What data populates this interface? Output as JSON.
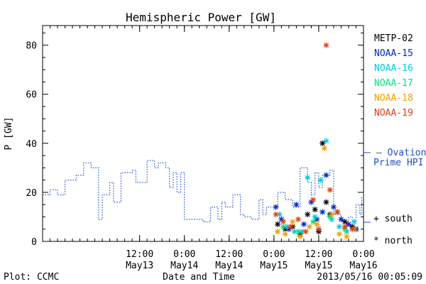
{
  "chart_data": {
    "type": "scatter",
    "title": "Hemispheric Power [GW]",
    "xlabel": "Date and Time",
    "ylabel": "P [GW]",
    "x_range": [
      "2013-05-12T10:00",
      "2013-05-16T00:00"
    ],
    "ylim": [
      0,
      88
    ],
    "y_ticks": [
      0,
      20,
      40,
      60,
      80
    ],
    "x_ticks": [
      {
        "x": "2013-05-13T12:00",
        "line1": "12:00",
        "line2": "May13"
      },
      {
        "x": "2013-05-14T00:00",
        "line1": "0:00",
        "line2": "May14"
      },
      {
        "x": "2013-05-14T12:00",
        "line1": "12:00",
        "line2": "May14"
      },
      {
        "x": "2013-05-15T00:00",
        "line1": "0:00",
        "line2": "May15"
      },
      {
        "x": "2013-05-15T12:00",
        "line1": "12:00",
        "line2": "May15"
      },
      {
        "x": "2013-05-16T00:00",
        "line1": "0:00",
        "line2": "May16"
      }
    ],
    "legend": {
      "placement": "right",
      "entries": [
        {
          "name": "METP-02",
          "color": "#000000"
        },
        {
          "name": "NOAA-15",
          "color": "#0028c8"
        },
        {
          "name": "NOAA-16",
          "color": "#00c8e6"
        },
        {
          "name": "NOAA-17",
          "color": "#00e678"
        },
        {
          "name": "NOAA-18",
          "color": "#f0a000"
        },
        {
          "name": "NOAA-19",
          "color": "#e63c14"
        }
      ],
      "model_line1": "— Ovation",
      "model_line2": "Prime HPI",
      "model_color": "#1e50c8",
      "marker_south": "+ south",
      "marker_north": "* north"
    },
    "series": [
      {
        "name": "Ovation Prime HPI",
        "style": "dotted-step",
        "color": "#1e50c8",
        "points": [
          [
            "2013-05-12T10:00",
            19
          ],
          [
            "2013-05-12T12:00",
            21
          ],
          [
            "2013-05-12T14:00",
            19
          ],
          [
            "2013-05-12T16:00",
            25
          ],
          [
            "2013-05-12T19:00",
            27
          ],
          [
            "2013-05-12T21:00",
            32
          ],
          [
            "2013-05-12T23:00",
            30
          ],
          [
            "2013-05-13T01:00",
            9
          ],
          [
            "2013-05-13T02:00",
            19
          ],
          [
            "2013-05-13T04:00",
            24
          ],
          [
            "2013-05-13T05:00",
            16
          ],
          [
            "2013-05-13T07:00",
            28
          ],
          [
            "2013-05-13T10:00",
            29
          ],
          [
            "2013-05-13T11:00",
            24
          ],
          [
            "2013-05-13T12:00",
            24
          ],
          [
            "2013-05-13T14:00",
            33
          ],
          [
            "2013-05-13T16:00",
            30
          ],
          [
            "2013-05-13T17:00",
            32
          ],
          [
            "2013-05-13T19:00",
            30
          ],
          [
            "2013-05-13T20:00",
            22
          ],
          [
            "2013-05-13T21:00",
            28
          ],
          [
            "2013-05-13T22:00",
            20
          ],
          [
            "2013-05-13T23:00",
            28
          ],
          [
            "2013-05-14T00:00",
            9
          ],
          [
            "2013-05-14T02:00",
            9
          ],
          [
            "2013-05-14T05:00",
            8
          ],
          [
            "2013-05-14T07:00",
            14
          ],
          [
            "2013-05-14T09:00",
            9
          ],
          [
            "2013-05-14T10:00",
            16
          ],
          [
            "2013-05-14T11:00",
            14
          ],
          [
            "2013-05-14T13:00",
            19
          ],
          [
            "2013-05-14T15:00",
            11
          ],
          [
            "2013-05-14T16:00",
            10
          ],
          [
            "2013-05-14T18:00",
            9
          ],
          [
            "2013-05-14T20:00",
            17
          ],
          [
            "2013-05-14T21:00",
            11
          ],
          [
            "2013-05-14T22:00",
            14
          ],
          [
            "2013-05-15T01:00",
            20
          ],
          [
            "2013-05-15T03:00",
            17
          ],
          [
            "2013-05-15T05:00",
            14
          ],
          [
            "2013-05-15T07:00",
            30
          ],
          [
            "2013-05-15T09:00",
            24
          ],
          [
            "2013-05-15T10:00",
            19
          ],
          [
            "2013-05-15T11:00",
            28
          ],
          [
            "2013-05-15T12:00",
            22
          ],
          [
            "2013-05-15T13:00",
            27
          ],
          [
            "2013-05-15T15:00",
            29
          ],
          [
            "2013-05-15T16:00",
            11
          ],
          [
            "2013-05-15T18:00",
            9
          ],
          [
            "2013-05-15T19:00",
            8
          ],
          [
            "2013-05-15T20:00",
            10
          ],
          [
            "2013-05-15T21:00",
            8
          ],
          [
            "2013-05-15T22:00",
            15
          ],
          [
            "2013-05-15T23:00",
            11
          ],
          [
            "2013-05-15T23:30",
            18
          ],
          [
            "2013-05-16T00:00",
            20
          ]
        ]
      },
      {
        "name": "METP-02",
        "color": "#000000",
        "points": [
          [
            "2013-05-15T01:00",
            7
          ],
          [
            "2013-05-15T03:00",
            5
          ],
          [
            "2013-05-15T05:00",
            6
          ],
          [
            "2013-05-15T07:00",
            3
          ],
          [
            "2013-05-15T09:00",
            11
          ],
          [
            "2013-05-15T11:00",
            13
          ],
          [
            "2013-05-15T12:00",
            4
          ],
          [
            "2013-05-15T13:00",
            40
          ],
          [
            "2013-05-15T14:00",
            16
          ],
          [
            "2013-05-15T15:00",
            11
          ],
          [
            "2013-05-15T17:00",
            12
          ],
          [
            "2013-05-15T19:00",
            8
          ],
          [
            "2013-05-15T21:00",
            6
          ],
          [
            "2013-05-15T22:00",
            5
          ]
        ]
      },
      {
        "name": "NOAA-15",
        "color": "#0028c8",
        "points": [
          [
            "2013-05-15T00:30",
            14
          ],
          [
            "2013-05-15T02:00",
            9
          ],
          [
            "2013-05-15T04:00",
            5
          ],
          [
            "2013-05-15T06:00",
            15
          ],
          [
            "2013-05-15T08:00",
            7
          ],
          [
            "2013-05-15T10:00",
            16
          ],
          [
            "2013-05-15T11:30",
            9
          ],
          [
            "2013-05-15T13:00",
            12
          ],
          [
            "2013-05-15T14:00",
            27
          ],
          [
            "2013-05-15T16:00",
            14
          ],
          [
            "2013-05-15T18:00",
            9
          ],
          [
            "2013-05-15T20:00",
            7
          ],
          [
            "2013-05-15T22:00",
            5
          ]
        ]
      },
      {
        "name": "NOAA-16",
        "color": "#00c8e6",
        "points": [
          [
            "2013-05-15T01:30",
            11
          ],
          [
            "2013-05-15T03:30",
            6
          ],
          [
            "2013-05-15T05:30",
            4
          ],
          [
            "2013-05-15T07:30",
            4
          ],
          [
            "2013-05-15T09:00",
            26
          ],
          [
            "2013-05-15T11:00",
            10
          ],
          [
            "2013-05-15T12:30",
            25
          ],
          [
            "2013-05-15T14:00",
            41
          ],
          [
            "2013-05-15T15:30",
            9
          ],
          [
            "2013-05-15T17:30",
            6
          ],
          [
            "2013-05-15T19:30",
            4
          ],
          [
            "2013-05-15T21:30",
            8
          ]
        ]
      },
      {
        "name": "NOAA-17",
        "color": "#00e678",
        "points": [
          [
            "2013-05-15T02:30",
            6
          ],
          [
            "2013-05-15T06:30",
            4
          ],
          [
            "2013-05-15T10:30",
            8
          ],
          [
            "2013-05-15T15:00",
            10
          ],
          [
            "2013-05-15T19:00",
            5
          ]
        ]
      },
      {
        "name": "NOAA-18",
        "color": "#f0a000",
        "points": [
          [
            "2013-05-15T01:00",
            4
          ],
          [
            "2013-05-15T03:00",
            3
          ],
          [
            "2013-05-15T05:00",
            8
          ],
          [
            "2013-05-15T07:00",
            2
          ],
          [
            "2013-05-15T09:30",
            6
          ],
          [
            "2013-05-15T11:30",
            7
          ],
          [
            "2013-05-15T13:30",
            38
          ],
          [
            "2013-05-15T15:30",
            11
          ],
          [
            "2013-05-15T17:30",
            3
          ],
          [
            "2013-05-15T19:30",
            2
          ],
          [
            "2013-05-15T21:30",
            5
          ]
        ]
      },
      {
        "name": "NOAA-19",
        "color": "#e63c14",
        "points": [
          [
            "2013-05-15T00:30",
            11
          ],
          [
            "2013-05-15T02:30",
            8
          ],
          [
            "2013-05-15T04:30",
            6
          ],
          [
            "2013-05-15T06:30",
            9
          ],
          [
            "2013-05-15T08:30",
            4
          ],
          [
            "2013-05-15T10:30",
            17
          ],
          [
            "2013-05-15T12:00",
            5
          ],
          [
            "2013-05-15T14:00",
            80
          ],
          [
            "2013-05-15T15:00",
            21
          ],
          [
            "2013-05-15T17:00",
            12
          ],
          [
            "2013-05-15T19:00",
            6
          ],
          [
            "2013-05-15T21:00",
            5
          ]
        ]
      }
    ]
  },
  "footer": {
    "plot_credit": "Plot: CCMC",
    "timestamp": "2013/05/16 00:05:09"
  }
}
